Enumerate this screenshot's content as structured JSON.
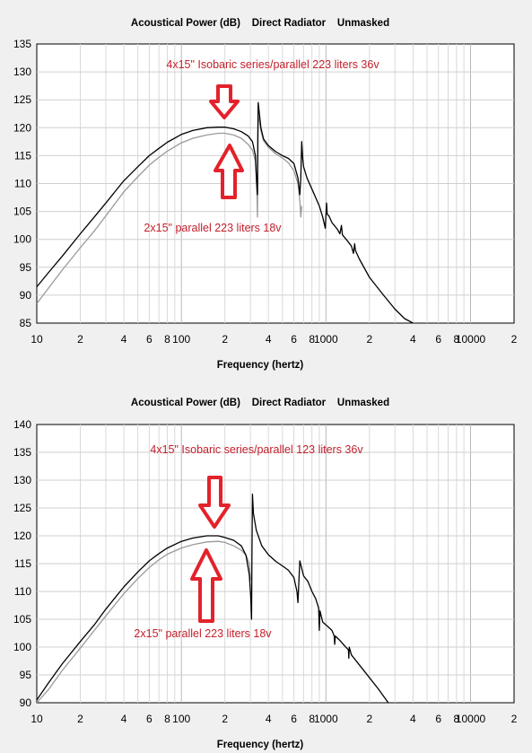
{
  "chart_data": [
    {
      "type": "line",
      "title": "Acoustical Power (dB)    Direct Radiator    Unmasked",
      "xlabel": "Frequency (hertz)",
      "ylabel": "",
      "xscale": "log",
      "xlim": [
        10,
        20000
      ],
      "ylim": [
        85,
        135
      ],
      "yticks": [
        85,
        90,
        95,
        100,
        105,
        110,
        115,
        120,
        125,
        130,
        135
      ],
      "xtick_labels": [
        "10",
        "2",
        "4",
        "6",
        "8",
        "100",
        "2",
        "4",
        "6",
        "8",
        "1000",
        "2",
        "4",
        "6",
        "8",
        "10000",
        "2"
      ],
      "xtick_values": [
        10,
        20,
        40,
        60,
        80,
        100,
        200,
        400,
        600,
        800,
        1000,
        2000,
        4000,
        6000,
        8000,
        10000,
        20000
      ],
      "grid": true,
      "series": [
        {
          "color": "#000000",
          "x": [
            10,
            12,
            15,
            20,
            25,
            30,
            40,
            50,
            60,
            70,
            80,
            100,
            120,
            150,
            180,
            200,
            230,
            260,
            290,
            310,
            325,
            332,
            336,
            338,
            340,
            345,
            355,
            370,
            400,
            450,
            500,
            550,
            600,
            640,
            660,
            670,
            680,
            690,
            700,
            740,
            800,
            900,
            950,
            990,
            1010,
            1020,
            1050,
            1100,
            1200,
            1250,
            1280,
            1300,
            1400,
            1500,
            1550,
            1580,
            1600,
            1700,
            2000,
            2500,
            3000,
            3500,
            4000
          ],
          "y": [
            91.5,
            94,
            97,
            101,
            104,
            106.5,
            110.5,
            113,
            115,
            116.3,
            117.4,
            118.8,
            119.5,
            120,
            120.1,
            120.1,
            119.8,
            119.3,
            118.5,
            117.5,
            115,
            110,
            108,
            119,
            124.5,
            123,
            120,
            118,
            116.8,
            115.7,
            115,
            114.5,
            113.6,
            111,
            108,
            111,
            117.5,
            114.5,
            113,
            111,
            109,
            106,
            104,
            102,
            106.5,
            104.5,
            104.2,
            103,
            101.8,
            101,
            102.5,
            100.8,
            99.8,
            98.8,
            97.5,
            99.2,
            98,
            96.5,
            93.2,
            90,
            87.5,
            85.8,
            85
          ]
        },
        {
          "color": "#9a9a9a",
          "x": [
            10,
            12,
            15,
            20,
            25,
            30,
            40,
            50,
            60,
            70,
            80,
            100,
            120,
            150,
            180,
            200,
            230,
            260,
            290,
            310,
            325,
            332,
            336,
            338,
            340,
            345,
            355,
            370,
            400,
            450,
            500,
            550,
            600,
            640,
            660,
            670,
            680
          ],
          "y": [
            88.5,
            91.2,
            94.5,
            98.5,
            101.5,
            104.2,
            108.5,
            111.2,
            113.3,
            114.7,
            115.8,
            117.3,
            118.1,
            118.7,
            119,
            119,
            118.7,
            118.1,
            117,
            116,
            114,
            110,
            104,
            114,
            122,
            121.5,
            119.5,
            117.7,
            116.5,
            115.3,
            114.6,
            113.7,
            112.3,
            110,
            107,
            104,
            106
          ]
        }
      ],
      "annotations": [
        "4x15\" Isobaric series/parallel 223 liters 36v",
        "2x15\" parallel 223 liters 18v"
      ]
    },
    {
      "type": "line",
      "title": "Acoustical Power (dB)    Direct Radiator    Unmasked",
      "xlabel": "Frequency (hertz)",
      "ylabel": "",
      "xscale": "log",
      "xlim": [
        10,
        20000
      ],
      "ylim": [
        90,
        140
      ],
      "yticks": [
        90,
        95,
        100,
        105,
        110,
        115,
        120,
        125,
        130,
        135,
        140
      ],
      "xtick_labels": [
        "10",
        "2",
        "4",
        "6",
        "8",
        "100",
        "2",
        "4",
        "6",
        "8",
        "1000",
        "2",
        "4",
        "6",
        "8",
        "10000",
        "2"
      ],
      "xtick_values": [
        10,
        20,
        40,
        60,
        80,
        100,
        200,
        400,
        600,
        800,
        1000,
        2000,
        4000,
        6000,
        8000,
        10000,
        20000
      ],
      "grid": true,
      "series": [
        {
          "color": "#000000",
          "x": [
            10,
            12,
            15,
            20,
            25,
            30,
            40,
            50,
            60,
            70,
            80,
            100,
            120,
            150,
            180,
            200,
            230,
            260,
            280,
            295,
            302,
            306,
            308,
            310,
            315,
            330,
            360,
            400,
            450,
            500,
            550,
            600,
            630,
            640,
            650,
            660,
            700,
            750,
            800,
            850,
            890,
            900,
            910,
            950,
            1000,
            1100,
            1140,
            1150,
            1160,
            1250,
            1350,
            1430,
            1440,
            1450,
            1500,
            1800,
            2300,
            2700
          ],
          "y": [
            90.5,
            93.5,
            97,
            101,
            104,
            106.8,
            110.8,
            113.5,
            115.5,
            116.8,
            117.8,
            119,
            119.6,
            120,
            120,
            119.7,
            119.2,
            118.2,
            116.5,
            113,
            109,
            105,
            118,
            127.5,
            124,
            121,
            118.2,
            116.6,
            115.4,
            114.6,
            113.8,
            112.5,
            110,
            108,
            112,
            115.5,
            112.8,
            111.8,
            110,
            108.7,
            107,
            103,
            106.5,
            104.5,
            104,
            103,
            102,
            100.5,
            102,
            101.2,
            100.2,
            99.5,
            98,
            100,
            98.6,
            96,
            92.5,
            90
          ]
        },
        {
          "color": "#9a9a9a",
          "x": [
            10,
            12,
            15,
            20,
            25,
            30,
            40,
            50,
            60,
            70,
            80,
            100,
            120,
            150,
            180,
            200,
            230,
            260,
            280,
            295,
            302
          ],
          "y": [
            90,
            92.3,
            95.8,
            99.8,
            103,
            105.6,
            109.6,
            112.3,
            114.3,
            115.7,
            116.7,
            117.8,
            118.4,
            118.9,
            119,
            118.8,
            118.2,
            117.4,
            116.5,
            115,
            112
          ]
        }
      ],
      "annotations": [
        "4x15\" Isobaric series/parallel 123 liters 36v",
        "2x15\" parallel 223 liters 18v"
      ]
    }
  ]
}
